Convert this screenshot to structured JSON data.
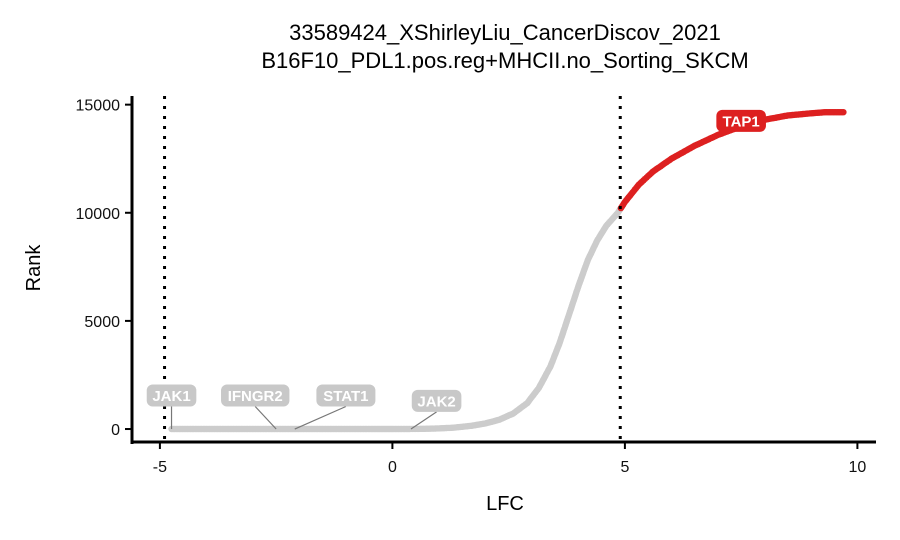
{
  "chart_data": {
    "type": "scatter",
    "title": "33589424_XShirleyLiu_CancerDiscov_2021",
    "subtitle": "B16F10_PDL1.pos.reg+MHCII.no_Sorting_SKCM",
    "xlabel": "LFC",
    "ylabel": "Rank",
    "xlim": [
      -5.6,
      10.4
    ],
    "ylim": [
      -600,
      15400
    ],
    "x_ticks": [
      -5,
      0,
      5,
      10
    ],
    "x_tick_labels": [
      "-5",
      "0",
      "5",
      "10"
    ],
    "y_ticks": [
      0,
      5000,
      10000,
      15000
    ],
    "y_tick_labels": [
      "0",
      "5000",
      "10000",
      "15000"
    ],
    "thresholds_x": [
      -4.9,
      4.9
    ],
    "colors": {
      "gray_points": "#cccccc",
      "red_points": "#dd2020",
      "threshold_line": "#000000",
      "label_gray_bg": "#c8c8c8",
      "label_red_bg": "#dd2020"
    },
    "curve_points": [
      [
        -4.75,
        0
      ],
      [
        -2.6,
        0
      ],
      [
        -2.5,
        0
      ],
      [
        -2.4,
        0
      ],
      [
        -2.2,
        0
      ],
      [
        -2.05,
        0
      ],
      [
        -1.3,
        0
      ],
      [
        -0.45,
        0
      ],
      [
        -0.3,
        0
      ],
      [
        -0.15,
        0
      ],
      [
        0.0,
        0
      ],
      [
        0.2,
        1
      ],
      [
        0.5,
        5
      ],
      [
        0.9,
        20
      ],
      [
        1.3,
        60
      ],
      [
        1.7,
        150
      ],
      [
        2.0,
        260
      ],
      [
        2.3,
        430
      ],
      [
        2.6,
        720
      ],
      [
        2.9,
        1200
      ],
      [
        3.15,
        1900
      ],
      [
        3.4,
        2900
      ],
      [
        3.6,
        4000
      ],
      [
        3.8,
        5300
      ],
      [
        4.0,
        6600
      ],
      [
        4.2,
        7800
      ],
      [
        4.4,
        8700
      ],
      [
        4.6,
        9400
      ],
      [
        4.85,
        10000
      ],
      [
        5.0,
        10500
      ],
      [
        5.3,
        11300
      ],
      [
        5.6,
        11900
      ],
      [
        6.0,
        12500
      ],
      [
        6.5,
        13100
      ],
      [
        7.0,
        13600
      ],
      [
        7.5,
        14000
      ],
      [
        8.0,
        14300
      ],
      [
        8.5,
        14500
      ],
      [
        9.0,
        14600
      ],
      [
        9.3,
        14650
      ],
      [
        9.7,
        14650
      ]
    ],
    "red_threshold_x": 4.9,
    "labels": [
      {
        "gene": "JAK1",
        "x": -4.75,
        "y": 0,
        "label_x": -4.75,
        "label_y": 1550,
        "color": "gray"
      },
      {
        "gene": "IFNGR2",
        "x": -2.5,
        "y": 0,
        "label_x": -2.95,
        "label_y": 1550,
        "color": "gray"
      },
      {
        "gene": "STAT1",
        "x": -2.1,
        "y": 0,
        "label_x": -1.0,
        "label_y": 1550,
        "color": "gray"
      },
      {
        "gene": "JAK2",
        "x": 0.4,
        "y": 0,
        "label_x": 0.95,
        "label_y": 1300,
        "color": "gray"
      },
      {
        "gene": "TAP1",
        "x": 7.2,
        "y": 14250,
        "label_x": 7.5,
        "label_y": 14250,
        "color": "red"
      }
    ]
  }
}
